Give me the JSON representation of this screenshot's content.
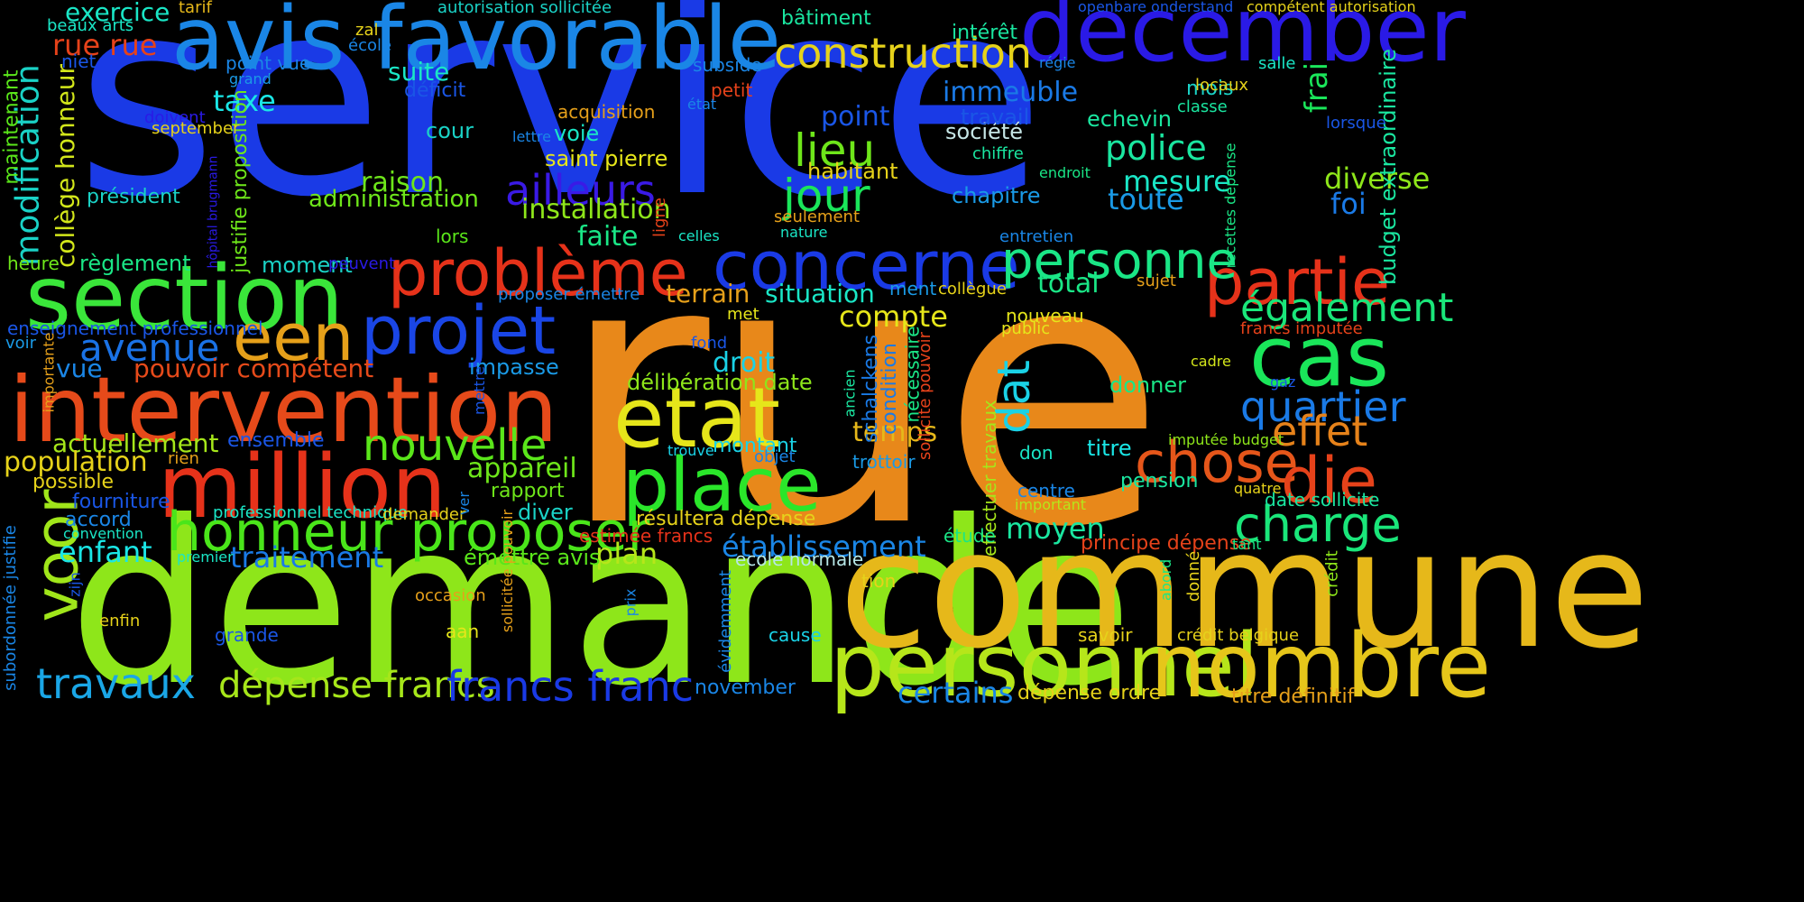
{
  "background_color": "#000000",
  "words": [
    {
      "text": "service",
      "color": "#1a3ae6"
    },
    {
      "text": "rue",
      "color": "#e8881a"
    },
    {
      "text": "demande",
      "color": "#8ee61a"
    },
    {
      "text": "commune",
      "color": "#e6b81a"
    },
    {
      "text": "avis favorable",
      "color": "#1a86e6"
    },
    {
      "text": "december",
      "color": "#2a1ae6"
    },
    {
      "text": "intervention",
      "color": "#e64a1a"
    },
    {
      "text": "section",
      "color": "#3ae63a"
    },
    {
      "text": "million",
      "color": "#e6321a"
    },
    {
      "text": "personnel",
      "color": "#b6e61a"
    },
    {
      "text": "nombre",
      "color": "#e6c61a"
    },
    {
      "text": "etat",
      "color": "#e6e61a"
    },
    {
      "text": "concerne",
      "color": "#1a3ae6"
    },
    {
      "text": "problème",
      "color": "#e6321a"
    },
    {
      "text": "projet",
      "color": "#1a46e6"
    },
    {
      "text": "place",
      "color": "#2ae62a"
    },
    {
      "text": "honneur proposer",
      "color": "#4ae61a"
    },
    {
      "text": "partie",
      "color": "#e6321a"
    },
    {
      "text": "cas",
      "color": "#1ae65a"
    },
    {
      "text": "personne",
      "color": "#1ae686"
    },
    {
      "text": "een",
      "color": "#e6a01a"
    },
    {
      "text": "nouvelle",
      "color": "#5ae61a"
    },
    {
      "text": "chose",
      "color": "#e6561a"
    },
    {
      "text": "die",
      "color": "#e6421a"
    },
    {
      "text": "charge",
      "color": "#1ae67a"
    },
    {
      "text": "construction",
      "color": "#e6d21a"
    },
    {
      "text": "travaux",
      "color": "#1aa6e6"
    },
    {
      "text": "dépense francs",
      "color": "#a6e61a"
    },
    {
      "text": "francs franc",
      "color": "#1a3ae6"
    },
    {
      "text": "voor",
      "color": "#a0e61a"
    },
    {
      "text": "avenue",
      "color": "#1a72e6"
    },
    {
      "text": "lieu",
      "color": "#6ee61a"
    },
    {
      "text": "jour",
      "color": "#1ae65a"
    },
    {
      "text": "ailleurs",
      "color": "#3a1ae6"
    },
    {
      "text": "police",
      "color": "#1ae6a0"
    },
    {
      "text": "quartier",
      "color": "#1a7ae6"
    },
    {
      "text": "également",
      "color": "#1ae67a"
    },
    {
      "text": "effet",
      "color": "#e6821a"
    },
    {
      "text": "dat",
      "color": "#1ad2e6"
    },
    {
      "text": "compte",
      "color": "#e6e61a"
    },
    {
      "text": "modification",
      "color": "#1ad2c6"
    },
    {
      "text": "actuellement",
      "color": "#a6e61a"
    },
    {
      "text": "population",
      "color": "#e6d21a"
    },
    {
      "text": "raison",
      "color": "#6ee61a"
    },
    {
      "text": "installation",
      "color": "#8ee61a"
    },
    {
      "text": "exercice",
      "color": "#1ae6c6"
    },
    {
      "text": "rue rue",
      "color": "#e6421a"
    },
    {
      "text": "taxe",
      "color": "#1ae6e6"
    },
    {
      "text": "suite",
      "color": "#1ae6c6"
    },
    {
      "text": "immeuble",
      "color": "#1a7ae6"
    },
    {
      "text": "point",
      "color": "#1a56e6"
    },
    {
      "text": "mesure",
      "color": "#1ae6c6"
    },
    {
      "text": "toute",
      "color": "#1a9ae6"
    },
    {
      "text": "diverse",
      "color": "#8ee61a"
    },
    {
      "text": "foi",
      "color": "#1a7ae6"
    },
    {
      "text": "total",
      "color": "#1ae686"
    },
    {
      "text": "situation",
      "color": "#1ae6c6"
    },
    {
      "text": "terrain",
      "color": "#e6a01a"
    },
    {
      "text": "faite",
      "color": "#1ae686"
    },
    {
      "text": "pouvoir compétent",
      "color": "#e64a1a"
    },
    {
      "text": "vue",
      "color": "#1a86e6"
    },
    {
      "text": "droit",
      "color": "#1ad2e6"
    },
    {
      "text": "temps",
      "color": "#e6b81a"
    },
    {
      "text": "appareil",
      "color": "#6ee61a"
    },
    {
      "text": "moyen",
      "color": "#1ae6a0"
    },
    {
      "text": "plan",
      "color": "#b6e61a"
    },
    {
      "text": "établissement",
      "color": "#1a86e6"
    },
    {
      "text": "traitement",
      "color": "#1a7ae6"
    },
    {
      "text": "enfant",
      "color": "#1ae6e6"
    },
    {
      "text": "certains",
      "color": "#1a86e6"
    },
    {
      "text": "délibération date",
      "color": "#8ee61a"
    },
    {
      "text": "administration",
      "color": "#6ee61a"
    },
    {
      "text": "collège honneur",
      "color": "#d2e61a"
    },
    {
      "text": "règlement",
      "color": "#1ae686"
    },
    {
      "text": "moment",
      "color": "#1ad2c6"
    },
    {
      "text": "impasse",
      "color": "#1a9ae6"
    },
    {
      "text": "chapitre",
      "color": "#1a9ae6"
    },
    {
      "text": "société",
      "color": "#c6e6e6"
    },
    {
      "text": "echevin",
      "color": "#1ae6a0"
    },
    {
      "text": "cour",
      "color": "#1ad2c6"
    },
    {
      "text": "habitant",
      "color": "#e6d21a"
    },
    {
      "text": "saint pierre",
      "color": "#e6e61a"
    },
    {
      "text": "voie",
      "color": "#1ae6c6"
    },
    {
      "text": "travail",
      "color": "#1a56e6"
    },
    {
      "text": "donner",
      "color": "#1ae686"
    },
    {
      "text": "titre",
      "color": "#1ae6e6"
    },
    {
      "text": "bâtiment",
      "color": "#1ae6a0"
    },
    {
      "text": "intérêt",
      "color": "#1ae6a0"
    },
    {
      "text": "mois",
      "color": "#1ad2c6"
    },
    {
      "text": "frai",
      "color": "#1ae65a"
    },
    {
      "text": "budget extraordinaire",
      "color": "#1ae6a0"
    },
    {
      "text": "possible",
      "color": "#e6d21a"
    },
    {
      "text": "accord",
      "color": "#1a86e6"
    },
    {
      "text": "fourniture",
      "color": "#1a56e6"
    },
    {
      "text": "président",
      "color": "#1ad2c6"
    },
    {
      "text": "maintenant",
      "color": "#5ae61a"
    },
    {
      "text": "heure",
      "color": "#6ee61a"
    },
    {
      "text": "justifie proposition",
      "color": "#6ee61a"
    },
    {
      "text": "rapport",
      "color": "#6ee61a"
    },
    {
      "text": "diver",
      "color": "#1ad2c6"
    },
    {
      "text": "ensemble",
      "color": "#1a56e6"
    },
    {
      "text": "montant",
      "color": "#1ad2e6"
    },
    {
      "text": "résultera dépense",
      "color": "#e6d21a"
    },
    {
      "text": "principe dépense",
      "color": "#e6421a"
    },
    {
      "text": "date sollicite",
      "color": "#1ae6a0"
    },
    {
      "text": "pension",
      "color": "#1ae6a0"
    },
    {
      "text": "dépense ordre",
      "color": "#e6d21a"
    },
    {
      "text": "titre définitif",
      "color": "#e6a01a"
    },
    {
      "text": "november",
      "color": "#1a86e6"
    },
    {
      "text": "ecole normale",
      "color": "#b6e6e6"
    },
    {
      "text": "émettre avis",
      "color": "#5ae61a"
    },
    {
      "text": "estimée francs",
      "color": "#e6321a"
    },
    {
      "text": "professionnel technique",
      "color": "#1ae6c6"
    },
    {
      "text": "demander",
      "color": "#e6d21a"
    },
    {
      "text": "enseignement professionnel",
      "color": "#1a56e6"
    },
    {
      "text": "schalckens",
      "color": "#1a7ae6"
    },
    {
      "text": "condition",
      "color": "#1a7ae6"
    },
    {
      "text": "nécessaire",
      "color": "#1ae686"
    },
    {
      "text": "sollicite pouvoir",
      "color": "#e6421a"
    },
    {
      "text": "nouveau",
      "color": "#e6e61a"
    },
    {
      "text": "public",
      "color": "#e6e61a"
    },
    {
      "text": "francs imputée",
      "color": "#e6421a"
    },
    {
      "text": "effectuer travaux",
      "color": "#a6e61a"
    },
    {
      "text": "imputée budget",
      "color": "#8ee61a"
    },
    {
      "text": "don",
      "color": "#1ae6c6"
    },
    {
      "text": "centre",
      "color": "#1a86e6"
    },
    {
      "text": "important",
      "color": "#b6e61a"
    },
    {
      "text": "étude",
      "color": "#1ae686"
    },
    {
      "text": "tion",
      "color": "#e6d21a"
    },
    {
      "text": "cause",
      "color": "#1ad2e6"
    },
    {
      "text": "savoir",
      "color": "#e6d21a"
    },
    {
      "text": "crédit belgique",
      "color": "#e6d21a"
    },
    {
      "text": "crédit",
      "color": "#8ee61a"
    },
    {
      "text": "donné",
      "color": "#e6d21a"
    },
    {
      "text": "abord",
      "color": "#1ae686"
    },
    {
      "text": "prix",
      "color": "#1a86e6"
    },
    {
      "text": "aan",
      "color": "#e6e61a"
    },
    {
      "text": "grande",
      "color": "#1a56e6"
    },
    {
      "text": "enfin",
      "color": "#e6d21a"
    },
    {
      "text": "loi collège",
      "color": "#8ee61a"
    },
    {
      "text": "zijn",
      "color": "#1a56e6"
    },
    {
      "text": "sollicitée pouvoir",
      "color": "#e6a01a"
    },
    {
      "text": "occasion",
      "color": "#e6a01a"
    },
    {
      "text": "premier",
      "color": "#1ae6c6"
    },
    {
      "text": "convention",
      "color": "#1ae6c6"
    },
    {
      "text": "subordonnée justifie",
      "color": "#1a86e6"
    },
    {
      "text": "évidemment",
      "color": "#1a86e6"
    },
    {
      "text": "ver",
      "color": "#1a86e6"
    },
    {
      "text": "mettre",
      "color": "#1a56e6"
    },
    {
      "text": "rien",
      "color": "#e6a01a"
    },
    {
      "text": "objet",
      "color": "#1a86e6"
    },
    {
      "text": "trouve",
      "color": "#1ad2e6"
    },
    {
      "text": "trottoir",
      "color": "#1a9ae6"
    },
    {
      "text": "fond",
      "color": "#1a56e6"
    },
    {
      "text": "met",
      "color": "#e6e61a"
    },
    {
      "text": "ancien",
      "color": "#1ae6a0"
    },
    {
      "text": "cadre",
      "color": "#d2e61a"
    },
    {
      "text": "gaz",
      "color": "#1a56e6"
    },
    {
      "text": "quatre",
      "color": "#e6d21a"
    },
    {
      "text": "tant",
      "color": "#1ae686"
    },
    {
      "text": "ment",
      "color": "#1a9ae6"
    },
    {
      "text": "collègue",
      "color": "#e6d21a"
    },
    {
      "text": "sujet",
      "color": "#e6a01a"
    },
    {
      "text": "entretien",
      "color": "#1a86e6"
    },
    {
      "text": "recettes dépense",
      "color": "#1ae686"
    },
    {
      "text": "endroit",
      "color": "#1ae686"
    },
    {
      "text": "chiffre",
      "color": "#1ae6a0"
    },
    {
      "text": "lorsque",
      "color": "#1a56e6"
    },
    {
      "text": "classe",
      "color": "#1ae6a0"
    },
    {
      "text": "locaux",
      "color": "#e6d21a"
    },
    {
      "text": "salle",
      "color": "#1ae6c6"
    },
    {
      "text": "régie",
      "color": "#1a86e6"
    },
    {
      "text": "openbare onderstand",
      "color": "#1a56e6"
    },
    {
      "text": "compétent autorisation",
      "color": "#e6d21a"
    },
    {
      "text": "autorisation sollicitée",
      "color": "#1ad2c6"
    },
    {
      "text": "subside",
      "color": "#1a86e6"
    },
    {
      "text": "petit",
      "color": "#e6421a"
    },
    {
      "text": "état",
      "color": "#1a86e6"
    },
    {
      "text": "acquisition",
      "color": "#e6a01a"
    },
    {
      "text": "lettre",
      "color": "#1a86e6"
    },
    {
      "text": "déficit",
      "color": "#1a56e6"
    },
    {
      "text": "point vue",
      "color": "#1a86e6"
    },
    {
      "text": "grand",
      "color": "#1a9ae6"
    },
    {
      "text": "zal",
      "color": "#e6d21a"
    },
    {
      "text": "école",
      "color": "#1a86e6"
    },
    {
      "text": "tarif",
      "color": "#e6b81a"
    },
    {
      "text": "beaux arts",
      "color": "#1ae6c6"
    },
    {
      "text": "niet",
      "color": "#1a56e6"
    },
    {
      "text": "doivent",
      "color": "#2a1ae6"
    },
    {
      "text": "september",
      "color": "#e6d21a"
    },
    {
      "text": "hôpital brugmann",
      "color": "#2a1ae6"
    },
    {
      "text": "peuvent",
      "color": "#2a1ae6"
    },
    {
      "text": "proposer émettre",
      "color": "#1a86e6"
    },
    {
      "text": "seulement",
      "color": "#e6a01a"
    },
    {
      "text": "nature",
      "color": "#1ae6c6"
    },
    {
      "text": "celles",
      "color": "#1ae6c6"
    },
    {
      "text": "ligne",
      "color": "#e6421a"
    },
    {
      "text": "lors",
      "color": "#5ae61a"
    },
    {
      "text": "voir",
      "color": "#1a9ae6"
    },
    {
      "text": "importante",
      "color": "#e6a01a"
    }
  ]
}
